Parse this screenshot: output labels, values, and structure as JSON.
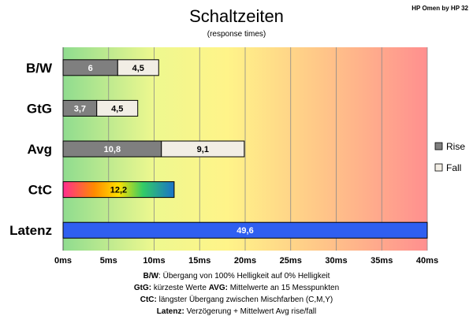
{
  "header": {
    "title": "Schaltzeiten",
    "subtitle": "(response times)",
    "corner_label": "HP Omen by HP 32"
  },
  "chart_data": {
    "type": "bar",
    "orientation": "horizontal",
    "stacked": true,
    "categories": [
      "B/W",
      "GtG",
      "Avg",
      "CtC",
      "Latenz"
    ],
    "series": [
      {
        "name": "Rise",
        "values": [
          6,
          3.7,
          10.8,
          null,
          null
        ],
        "labels": [
          "6",
          "3,7",
          "10,8",
          "",
          ""
        ]
      },
      {
        "name": "Fall",
        "values": [
          4.5,
          4.5,
          9.1,
          null,
          null
        ],
        "labels": [
          "4,5",
          "4,5",
          "9,1",
          "",
          ""
        ]
      }
    ],
    "single_values": {
      "CtC": {
        "value": 12.2,
        "label": "12,2"
      },
      "Latenz": {
        "value": 49.6,
        "label": "49,6"
      }
    },
    "x_ticks": [
      "0ms",
      "5ms",
      "10ms",
      "15ms",
      "20ms",
      "25ms",
      "30ms",
      "35ms",
      "40ms"
    ],
    "xlim": [
      0,
      40
    ],
    "grid": true,
    "legend_position": "right",
    "colors": {
      "rise": "#7f7f7f",
      "fall": "#f2eee5",
      "latenz": "#2f5ff0",
      "grid": "#8a8a8a",
      "bar_border": "#000000",
      "background_gradient": [
        "#8fdc8f",
        "#eef88f",
        "#fff489",
        "#ffc888",
        "#ff8f8f"
      ],
      "ctc_gradient": [
        "#ff2d8f",
        "#ff8a00",
        "#ffe000",
        "#33cc66",
        "#1a73c9"
      ]
    }
  },
  "notes": [
    {
      "parts": [
        {
          "b": "B/W"
        },
        {
          "t": ":  Übergang von 100% Helligkeit auf 0% Helligkeit"
        }
      ]
    },
    {
      "parts": [
        {
          "b": "GtG:"
        },
        {
          "t": " kürzeste  Werte         "
        },
        {
          "b": "AVG:"
        },
        {
          "t": " Mittelwerte  an 15 Messpunkten"
        }
      ]
    },
    {
      "parts": [
        {
          "b": "CtC:"
        },
        {
          "t": " längster Übergang  zwischen Mischfarben  (C,M,Y)"
        }
      ]
    },
    {
      "parts": [
        {
          "b": "Latenz:"
        },
        {
          "t": " Verzögerung  + Mittelwert  Avg rise/fall"
        }
      ]
    }
  ]
}
